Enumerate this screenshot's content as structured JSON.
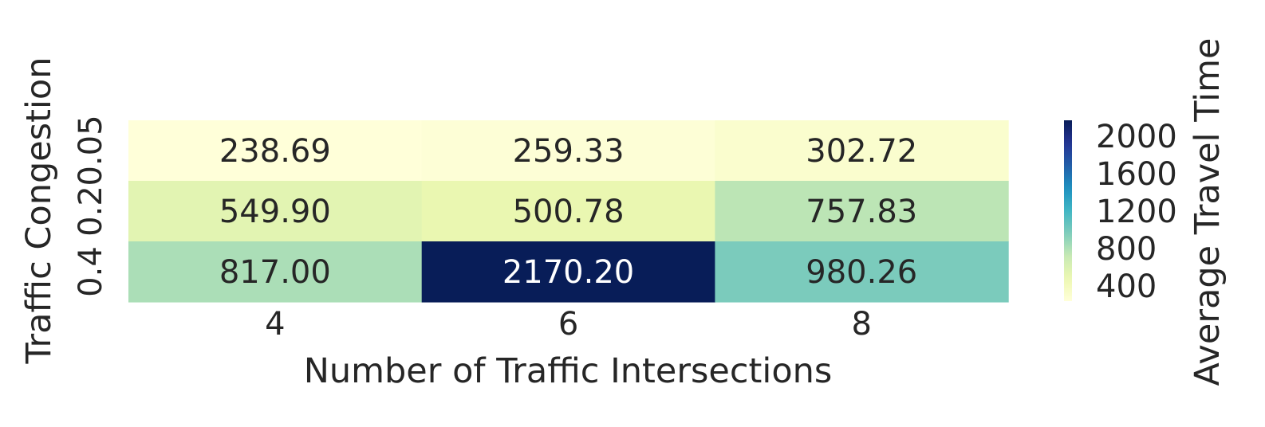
{
  "chart_data": {
    "type": "heatmap",
    "title": "",
    "xlabel": "Number of Traffic Intersections",
    "ylabel": "Traffic Congestion",
    "x_categories": [
      "4",
      "6",
      "8"
    ],
    "y_categories": [
      "0.05",
      "0.2",
      "0.4"
    ],
    "values": [
      [
        238.69,
        259.33,
        302.72
      ],
      [
        549.9,
        500.78,
        757.83
      ],
      [
        817.0,
        2170.2,
        980.26
      ]
    ],
    "value_labels": [
      [
        "238.69",
        "259.33",
        "302.72"
      ],
      [
        "549.90",
        "500.78",
        "757.83"
      ],
      [
        "817.00",
        "2170.20",
        "980.26"
      ]
    ],
    "colormap": "YlGnBu",
    "vmin": 238.69,
    "vmax": 2170.2,
    "colorbar": {
      "label": "Average Travel Time",
      "ticks": [
        "400",
        "800",
        "1200",
        "1600",
        "2000"
      ],
      "tick_values": [
        400,
        800,
        1200,
        1600,
        2000
      ]
    },
    "grid": false,
    "legend": "colorbar right"
  },
  "colors": {
    "text": "#262626",
    "text_on_dark": "#ffffff"
  }
}
